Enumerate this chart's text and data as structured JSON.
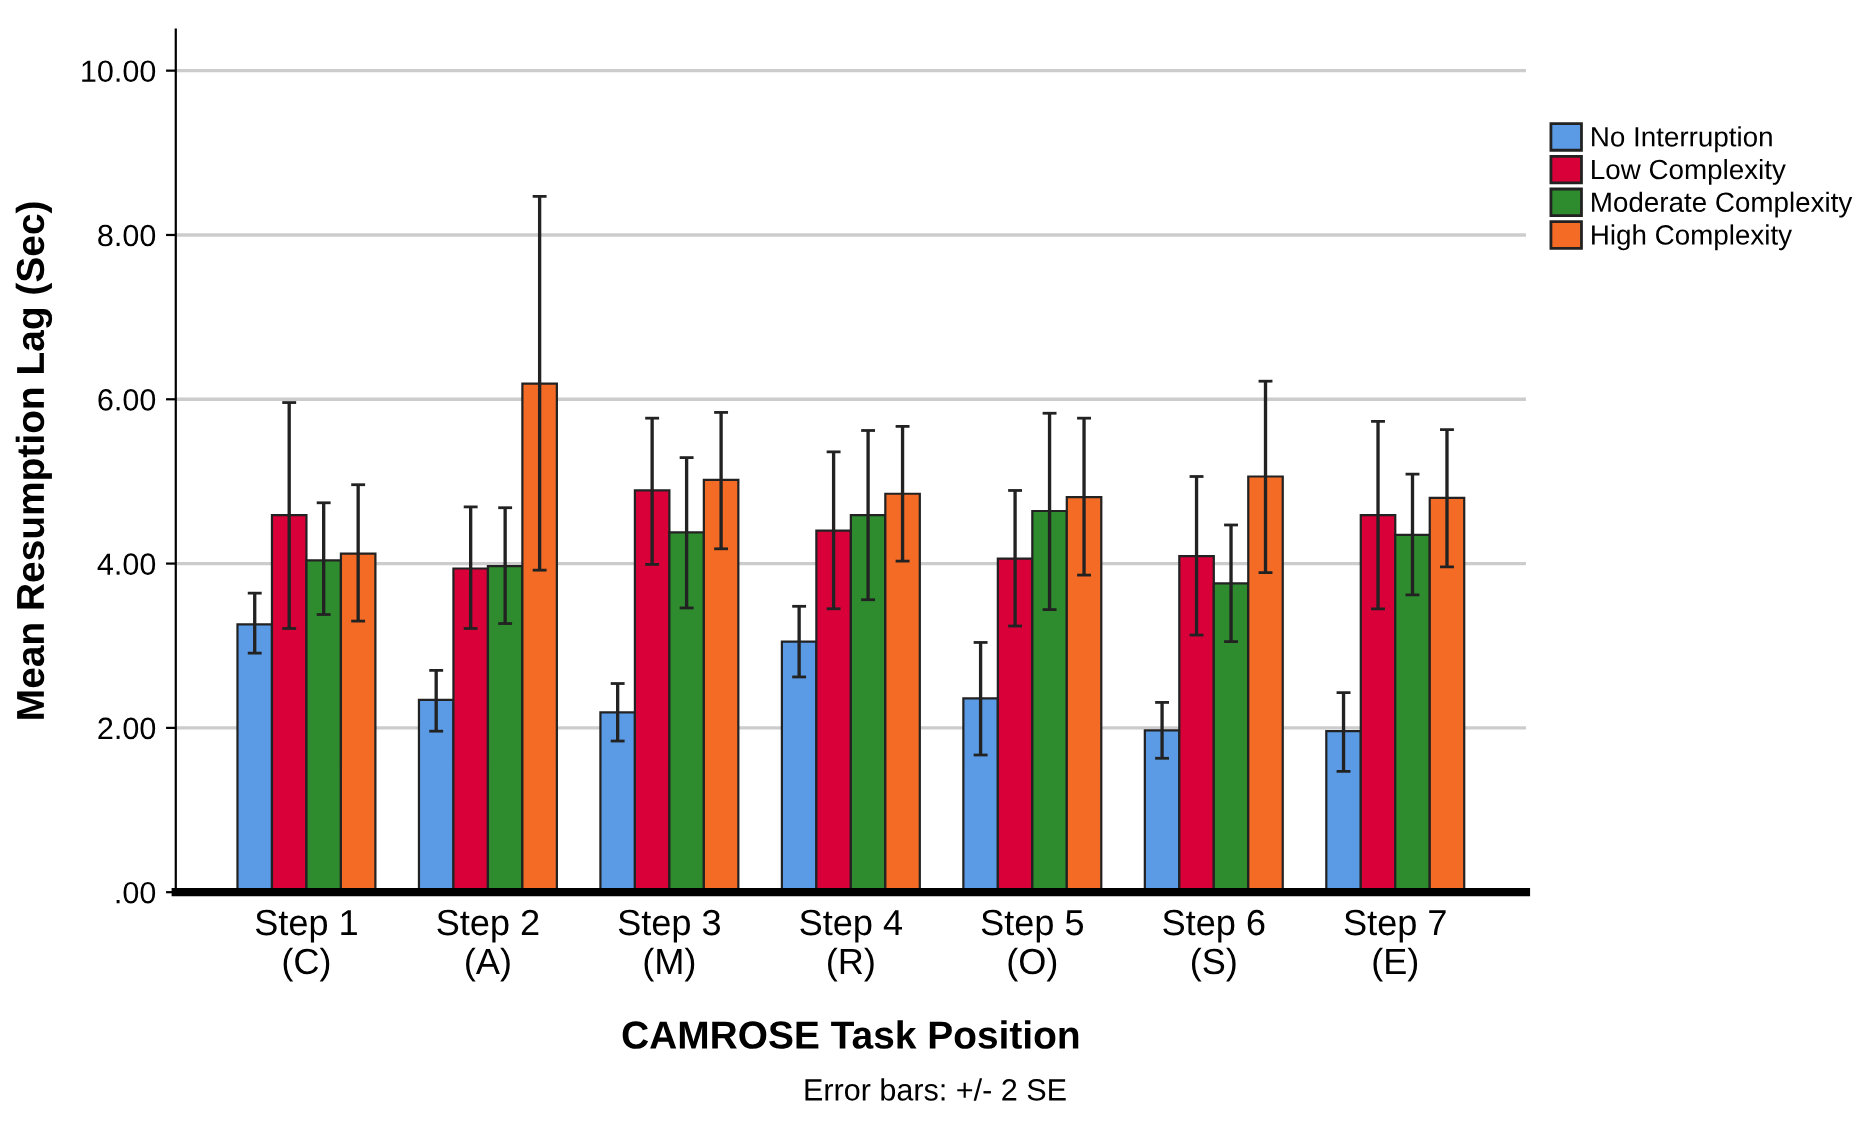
{
  "chart_data": {
    "type": "bar",
    "xlabel": "CAMROSE Task Position",
    "ylabel": "Mean Resumption Lag (Sec)",
    "categories": [
      "Step 1\n(C)",
      "Step 2\n(A)",
      "Step 3\n(M)",
      "Step 4\n(R)",
      "Step 5\n(O)",
      "Step 6\n(S)",
      "Step 7\n(E)"
    ],
    "series": [
      {
        "name": "No Interruption",
        "color": "#5b9be6",
        "values": [
          3.26,
          2.34,
          2.19,
          3.05,
          2.36,
          1.97,
          1.96
        ],
        "errors": [
          [
            2.91,
            3.64
          ],
          [
            1.96,
            2.7
          ],
          [
            1.84,
            2.54
          ],
          [
            2.62,
            3.48
          ],
          [
            1.67,
            3.04
          ],
          [
            1.63,
            2.31
          ],
          [
            1.47,
            2.43
          ]
        ]
      },
      {
        "name": "Low Complexity",
        "color": "#d9003a",
        "values": [
          4.59,
          3.94,
          4.89,
          4.4,
          4.06,
          4.09,
          4.59
        ],
        "errors": [
          [
            3.21,
            5.96
          ],
          [
            3.21,
            4.69
          ],
          [
            3.99,
            5.77
          ],
          [
            3.45,
            5.36
          ],
          [
            3.24,
            4.89
          ],
          [
            3.13,
            5.06
          ],
          [
            3.45,
            5.73
          ]
        ]
      },
      {
        "name": "Moderate Complexity",
        "color": "#2e8b2e",
        "values": [
          4.04,
          3.97,
          4.38,
          4.59,
          4.64,
          3.76,
          4.35
        ],
        "errors": [
          [
            3.38,
            4.74
          ],
          [
            3.27,
            4.68
          ],
          [
            3.46,
            5.29
          ],
          [
            3.56,
            5.62
          ],
          [
            3.44,
            5.83
          ],
          [
            3.05,
            4.47
          ],
          [
            3.62,
            5.09
          ]
        ]
      },
      {
        "name": "High Complexity",
        "color": "#f46b25",
        "values": [
          4.12,
          6.19,
          5.02,
          4.85,
          4.81,
          5.06,
          4.8
        ],
        "errors": [
          [
            3.3,
            4.96
          ],
          [
            3.92,
            8.47
          ],
          [
            4.18,
            5.84
          ],
          [
            4.03,
            5.67
          ],
          [
            3.86,
            5.77
          ],
          [
            3.89,
            6.22
          ],
          [
            3.96,
            5.63
          ]
        ]
      }
    ],
    "ylim": [
      0,
      10.5
    ],
    "yticks": [
      {
        "value": 0,
        "label": ".00"
      },
      {
        "value": 2,
        "label": "2.00"
      },
      {
        "value": 4,
        "label": "4.00"
      },
      {
        "value": 6,
        "label": "6.00"
      },
      {
        "value": 8,
        "label": "8.00"
      },
      {
        "value": 10,
        "label": "10.00"
      }
    ],
    "grid": "y",
    "legend": "top right",
    "annotations": [
      "Error bars: +/- 2 SE"
    ]
  }
}
